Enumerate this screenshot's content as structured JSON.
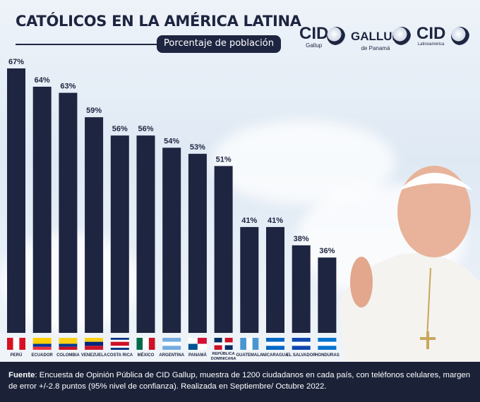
{
  "header": {
    "title": "CATÓLICOS EN LA AMÉRICA LATINA",
    "subtitle": "Porcentaje de población"
  },
  "logos": [
    {
      "main": "CID",
      "sub": "Gallup"
    },
    {
      "main": "GALLUP",
      "sub": "de Panamá"
    },
    {
      "main": "CID",
      "sub": "Latinoamérica"
    }
  ],
  "chart_data": {
    "type": "bar",
    "title": "CATÓLICOS EN LA AMÉRICA LATINA",
    "subtitle": "Porcentaje de población",
    "categories": [
      "PERÚ",
      "ECUADOR",
      "COLOMBIA",
      "VENEZUELA",
      "COSTA RICA",
      "MÉXICO",
      "ARGENTINA",
      "PANAMÁ",
      "REPÚBLICA DOMINICANA",
      "GUATEMALA",
      "NICARAGUA",
      "EL SALVADOR",
      "HONDURAS"
    ],
    "values": [
      67,
      64,
      63,
      59,
      56,
      56,
      54,
      53,
      51,
      41,
      41,
      38,
      36
    ],
    "value_labels": [
      "67%",
      "64%",
      "63%",
      "59%",
      "56%",
      "56%",
      "54%",
      "53%",
      "51%",
      "41%",
      "41%",
      "38%",
      "36%"
    ],
    "unit": "%",
    "bar_color": "#1e2540",
    "grid": false
  },
  "footer": {
    "label": "Fuente",
    "text": ": Encuesta de Opinión Pública de CID Gallup, muestra de 1200 ciudadanos en cada país, con teléfonos celulares, margen de error +/-2.8 puntos (95% nivel de confianza).  Realizada en Septiembre/ Octubre 2022."
  }
}
